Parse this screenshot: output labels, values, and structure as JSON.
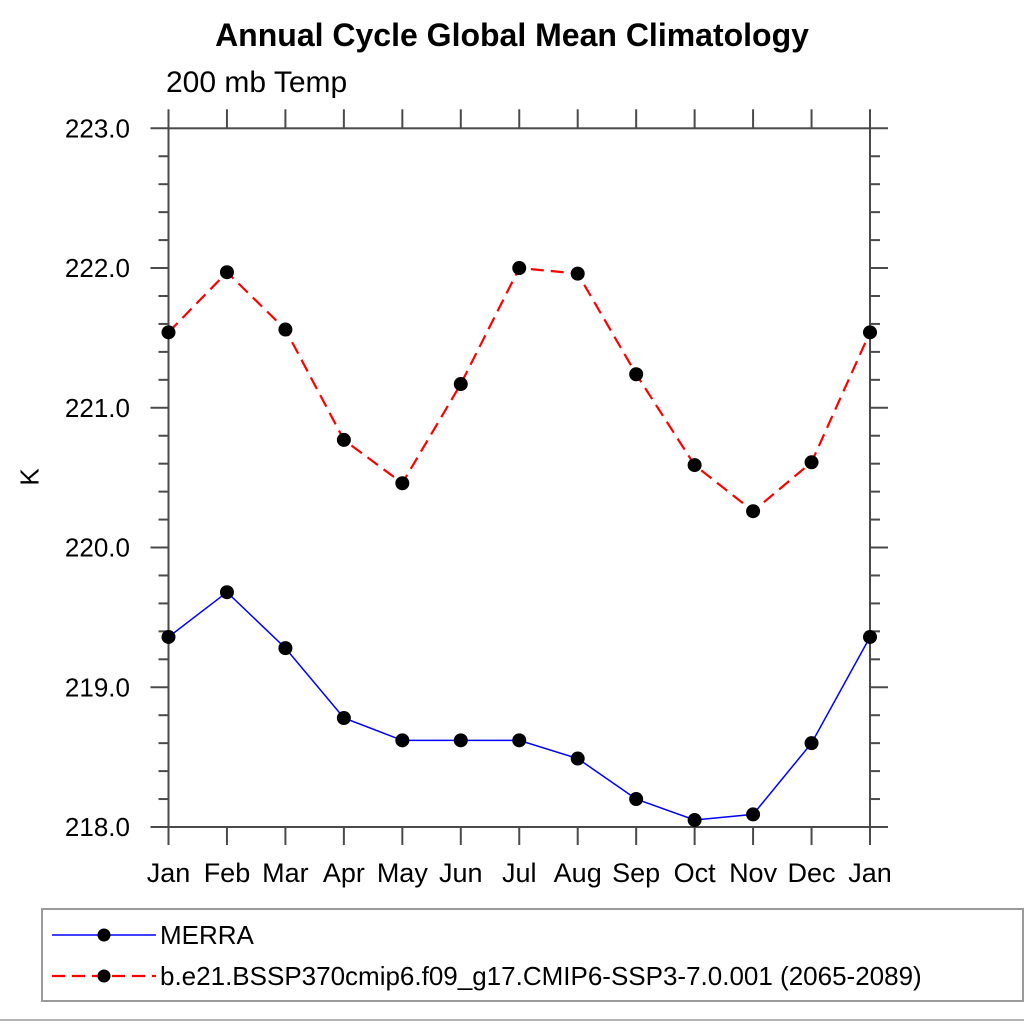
{
  "header": {
    "title": "Annual Cycle Global Mean Climatology",
    "subtitle": "200 mb Temp"
  },
  "chart_data": {
    "type": "line",
    "title": "Annual Cycle Global Mean Climatology",
    "subtitle": "200 mb Temp",
    "xlabel": "",
    "ylabel": "K",
    "categories": [
      "Jan",
      "Feb",
      "Mar",
      "Apr",
      "May",
      "Jun",
      "Jul",
      "Aug",
      "Sep",
      "Oct",
      "Nov",
      "Dec",
      "Jan"
    ],
    "ylim": [
      218.0,
      223.0
    ],
    "ytick_major_step": 1.0,
    "ytick_minor_step": 0.2,
    "ytick_labels": [
      "218.0",
      "219.0",
      "220.0",
      "221.0",
      "222.0",
      "223.0"
    ],
    "grid": false,
    "legend_position": "bottom",
    "series": [
      {
        "name": "MERRA",
        "color": "#0000ff",
        "line_style": "solid",
        "marker": "circle",
        "marker_color": "#000000",
        "values": [
          219.36,
          219.68,
          219.28,
          218.78,
          218.62,
          218.62,
          218.62,
          218.49,
          218.2,
          218.05,
          218.09,
          218.6,
          219.36
        ]
      },
      {
        "name": "b.e21.BSSP370cmip6.f09_g17.CMIP6-SSP3-7.0.001 (2065-2089)",
        "color": "#ff0000",
        "line_style": "dashed",
        "marker": "circle",
        "marker_color": "#000000",
        "values": [
          221.54,
          221.97,
          221.56,
          220.77,
          220.46,
          221.17,
          222.0,
          221.96,
          221.24,
          220.59,
          220.26,
          220.61,
          221.54
        ]
      }
    ]
  },
  "colors": {
    "axis": "#4a4a4a",
    "tick": "#4a4a4a",
    "text": "#000000",
    "legend_border": "#9a9a9a",
    "bottom_rule": "#b3b3b3"
  }
}
